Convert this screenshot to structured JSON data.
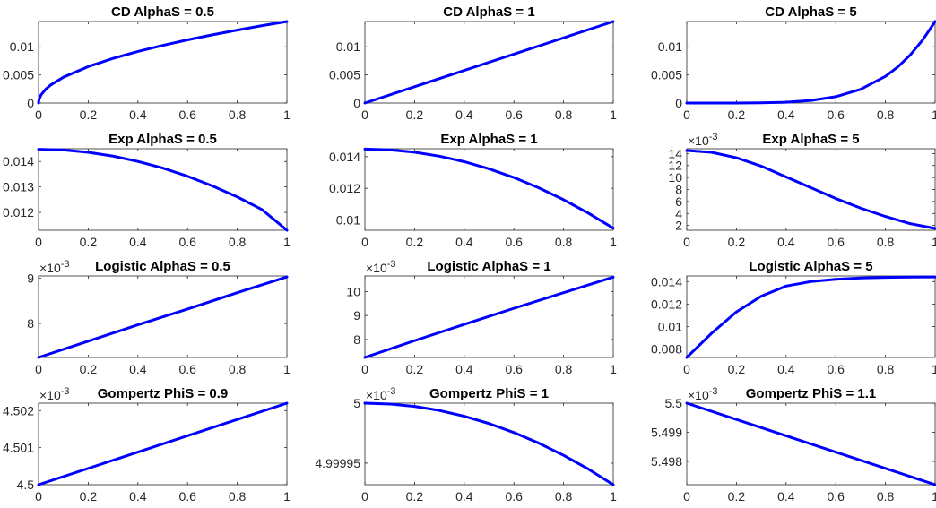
{
  "figure": {
    "colors": {
      "line": "#0000ff",
      "axes": "#262626",
      "background": "#ffffff"
    }
  },
  "chart_data": [
    {
      "type": "line",
      "title": "CD AlphaS = 0.5",
      "xlim": [
        0,
        1
      ],
      "ylim": [
        0,
        0.0145
      ],
      "xticks": [
        0,
        0.2,
        0.4,
        0.6,
        0.8,
        1
      ],
      "xticklabels": [
        "0",
        "0.2",
        "0.4",
        "0.6",
        "0.8",
        "1"
      ],
      "yticks": [
        0,
        0.005,
        0.01
      ],
      "yticklabels": [
        "0",
        "0.005",
        "0.01"
      ],
      "exponent": "",
      "series": [
        {
          "x": [
            0,
            0.002,
            0.01,
            0.03,
            0.05,
            0.1,
            0.2,
            0.3,
            0.4,
            0.5,
            0.6,
            0.7,
            0.8,
            0.9,
            1
          ],
          "y": [
            0,
            0.00065,
            0.00145,
            0.00251,
            0.00324,
            0.00459,
            0.00648,
            0.00794,
            0.00917,
            0.01025,
            0.01123,
            0.01213,
            0.01297,
            0.01376,
            0.0145
          ]
        }
      ]
    },
    {
      "type": "line",
      "title": "CD AlphaS = 1",
      "xlim": [
        0,
        1
      ],
      "ylim": [
        0,
        0.0145
      ],
      "xticks": [
        0,
        0.2,
        0.4,
        0.6,
        0.8,
        1
      ],
      "xticklabels": [
        "0",
        "0.2",
        "0.4",
        "0.6",
        "0.8",
        "1"
      ],
      "yticks": [
        0,
        0.005,
        0.01
      ],
      "yticklabels": [
        "0",
        "0.005",
        "0.01"
      ],
      "exponent": "",
      "series": [
        {
          "x": [
            0,
            1
          ],
          "y": [
            0,
            0.0145
          ]
        }
      ]
    },
    {
      "type": "line",
      "title": "CD AlphaS = 5",
      "xlim": [
        0,
        1
      ],
      "ylim": [
        0,
        0.0145
      ],
      "xticks": [
        0,
        0.2,
        0.4,
        0.6,
        0.8,
        1
      ],
      "xticklabels": [
        "0",
        "0.2",
        "0.4",
        "0.6",
        "0.8",
        "1"
      ],
      "yticks": [
        0,
        0.005,
        0.01
      ],
      "yticklabels": [
        "0",
        "0.005",
        "0.01"
      ],
      "exponent": "",
      "series": [
        {
          "x": [
            0,
            0.1,
            0.2,
            0.3,
            0.4,
            0.5,
            0.6,
            0.7,
            0.8,
            0.85,
            0.9,
            0.95,
            1
          ],
          "y": [
            0,
            0,
            4.6e-06,
            3.5e-05,
            0.000148,
            0.000453,
            0.00113,
            0.00244,
            0.00475,
            0.00643,
            0.00856,
            0.01122,
            0.0145
          ]
        }
      ]
    },
    {
      "type": "line",
      "title": "Exp AlphaS = 0.5",
      "xlim": [
        0,
        1
      ],
      "ylim": [
        0.0113,
        0.0145
      ],
      "xticks": [
        0,
        0.2,
        0.4,
        0.6,
        0.8,
        1
      ],
      "xticklabels": [
        "0",
        "0.2",
        "0.4",
        "0.6",
        "0.8",
        "1"
      ],
      "yticks": [
        0.012,
        0.013,
        0.014
      ],
      "yticklabels": [
        "0.012",
        "0.013",
        "0.014"
      ],
      "exponent": "",
      "series": [
        {
          "x": [
            0,
            0.1,
            0.2,
            0.3,
            0.4,
            0.5,
            0.6,
            0.7,
            0.8,
            0.9,
            1
          ],
          "y": [
            0.01448,
            0.01445,
            0.01436,
            0.01421,
            0.014,
            0.01374,
            0.01342,
            0.01304,
            0.01261,
            0.01211,
            0.0113
          ]
        }
      ]
    },
    {
      "type": "line",
      "title": "Exp AlphaS = 1",
      "xlim": [
        0,
        1
      ],
      "ylim": [
        0.00935,
        0.0145
      ],
      "xticks": [
        0,
        0.2,
        0.4,
        0.6,
        0.8,
        1
      ],
      "xticklabels": [
        "0",
        "0.2",
        "0.4",
        "0.6",
        "0.8",
        "1"
      ],
      "yticks": [
        0.01,
        0.012,
        0.014
      ],
      "yticklabels": [
        "0.01",
        "0.012",
        "0.014"
      ],
      "exponent": "",
      "series": [
        {
          "x": [
            0,
            0.1,
            0.2,
            0.3,
            0.4,
            0.5,
            0.6,
            0.7,
            0.8,
            0.9,
            1
          ],
          "y": [
            0.01448,
            0.01443,
            0.01428,
            0.01403,
            0.01368,
            0.01323,
            0.01268,
            0.01203,
            0.01128,
            0.01043,
            0.00948
          ]
        }
      ]
    },
    {
      "type": "line",
      "title": "Exp AlphaS = 5",
      "xlim": [
        0,
        1
      ],
      "ylim": [
        1.2,
        14.8
      ],
      "xticks": [
        0,
        0.2,
        0.4,
        0.6,
        0.8,
        1
      ],
      "xticklabels": [
        "0",
        "0.2",
        "0.4",
        "0.6",
        "0.8",
        "1"
      ],
      "yticks": [
        2,
        4,
        6,
        8,
        10,
        12,
        14
      ],
      "yticklabels": [
        "2",
        "4",
        "6",
        "8",
        "10",
        "12",
        "14"
      ],
      "exponent": "10^-3",
      "series": [
        {
          "x": [
            0,
            0.1,
            0.2,
            0.3,
            0.4,
            0.5,
            0.6,
            0.7,
            0.8,
            0.9,
            1
          ],
          "y": [
            14.5,
            14.2,
            13.3,
            11.9,
            10.1,
            8.3,
            6.5,
            4.9,
            3.5,
            2.3,
            1.5
          ]
        }
      ]
    },
    {
      "type": "line",
      "title": "Logistic AlphaS = 0.5",
      "xlim": [
        0,
        1
      ],
      "ylim": [
        7.25,
        9.05
      ],
      "xticks": [
        0,
        0.2,
        0.4,
        0.6,
        0.8,
        1
      ],
      "xticklabels": [
        "0",
        "0.2",
        "0.4",
        "0.6",
        "0.8",
        "1"
      ],
      "yticks": [
        8,
        9
      ],
      "yticklabels": [
        "8",
        "9"
      ],
      "exponent": "10^-3",
      "series": [
        {
          "x": [
            0,
            0.2,
            0.4,
            0.6,
            0.8,
            1
          ],
          "y": [
            7.25,
            7.61,
            7.97,
            8.32,
            8.68,
            9.03
          ]
        }
      ]
    },
    {
      "type": "line",
      "title": "Logistic AlphaS = 1",
      "xlim": [
        0,
        1
      ],
      "ylim": [
        7.25,
        10.65
      ],
      "xticks": [
        0,
        0.2,
        0.4,
        0.6,
        0.8,
        1
      ],
      "xticklabels": [
        "0",
        "0.2",
        "0.4",
        "0.6",
        "0.8",
        "1"
      ],
      "yticks": [
        8,
        9,
        10
      ],
      "yticklabels": [
        "8",
        "9",
        "10"
      ],
      "exponent": "10^-3",
      "series": [
        {
          "x": [
            0,
            0.2,
            0.4,
            0.6,
            0.8,
            1
          ],
          "y": [
            7.25,
            7.95,
            8.63,
            9.3,
            9.95,
            10.6
          ]
        }
      ]
    },
    {
      "type": "line",
      "title": "Logistic AlphaS = 5",
      "xlim": [
        0,
        1
      ],
      "ylim": [
        0.00725,
        0.0145
      ],
      "xticks": [
        0,
        0.2,
        0.4,
        0.6,
        0.8,
        1
      ],
      "xticklabels": [
        "0",
        "0.2",
        "0.4",
        "0.6",
        "0.8",
        "1"
      ],
      "yticks": [
        0.008,
        0.01,
        0.012,
        0.014
      ],
      "yticklabels": [
        "0.008",
        "0.01",
        "0.012",
        "0.014"
      ],
      "exponent": "",
      "series": [
        {
          "x": [
            0,
            0.1,
            0.2,
            0.3,
            0.4,
            0.5,
            0.6,
            0.7,
            0.8,
            0.9,
            1
          ],
          "y": [
            0.00725,
            0.0094,
            0.0113,
            0.0127,
            0.0136,
            0.014,
            0.0142,
            0.01432,
            0.01437,
            0.0144,
            0.01441
          ]
        }
      ]
    },
    {
      "type": "line",
      "title": "Gompertz PhiS = 0.9",
      "xlim": [
        0,
        1
      ],
      "ylim": [
        4.5,
        4.5022
      ],
      "xticks": [
        0,
        0.2,
        0.4,
        0.6,
        0.8,
        1
      ],
      "xticklabels": [
        "0",
        "0.2",
        "0.4",
        "0.6",
        "0.8",
        "1"
      ],
      "yticks": [
        4.5,
        4.501,
        4.502
      ],
      "yticklabels": [
        "4.5",
        "4.501",
        "4.502"
      ],
      "exponent": "10^-3",
      "series": [
        {
          "x": [
            0,
            1
          ],
          "y": [
            4.5,
            4.5022
          ]
        }
      ]
    },
    {
      "type": "line",
      "title": "Gompertz PhiS = 1",
      "xlim": [
        0,
        1
      ],
      "ylim": [
        4.999932,
        5.0
      ],
      "xticks": [
        0,
        0.2,
        0.4,
        0.6,
        0.8,
        1
      ],
      "xticklabels": [
        "0",
        "0.2",
        "0.4",
        "0.6",
        "0.8",
        "1"
      ],
      "yticks": [
        4.99995,
        5
      ],
      "yticklabels": [
        "4.99995",
        "5"
      ],
      "exponent": "10^-3",
      "series": [
        {
          "x": [
            0,
            0.1,
            0.2,
            0.3,
            0.4,
            0.5,
            0.6,
            0.7,
            0.8,
            0.9,
            1
          ],
          "y": [
            5.0,
            4.9999993,
            4.9999973,
            4.9999939,
            4.9999891,
            4.999983,
            4.9999755,
            4.9999667,
            4.9999565,
            4.999945,
            4.999932
          ]
        }
      ]
    },
    {
      "type": "line",
      "title": "Gompertz PhiS = 1.1",
      "xlim": [
        0,
        1
      ],
      "ylim": [
        5.4972,
        5.5
      ],
      "xticks": [
        0,
        0.2,
        0.4,
        0.6,
        0.8,
        1
      ],
      "xticklabels": [
        "0",
        "0.2",
        "0.4",
        "0.6",
        "0.8",
        "1"
      ],
      "yticks": [
        5.498,
        5.499,
        5.5
      ],
      "yticklabels": [
        "5.498",
        "5.499",
        "5.5"
      ],
      "exponent": "10^-3",
      "series": [
        {
          "x": [
            0,
            1
          ],
          "y": [
            5.5,
            5.4972
          ]
        }
      ]
    }
  ]
}
